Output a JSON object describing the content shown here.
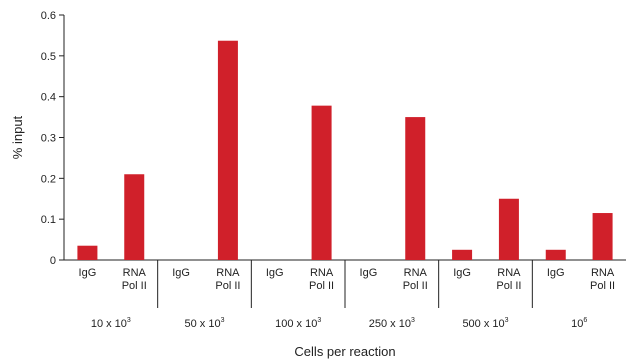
{
  "chart_data": {
    "type": "bar",
    "ylabel": "% input",
    "xlabel": "Cells per reaction",
    "ylim": [
      0,
      0.6
    ],
    "yticks": [
      "0",
      "0.1",
      "0.2",
      "0.3",
      "0.4",
      "0.5",
      "0.6"
    ],
    "ytick_values": [
      0,
      0.1,
      0.2,
      0.3,
      0.4,
      0.5,
      0.6
    ],
    "grid": false,
    "bar_color": "#d0202a",
    "groups": [
      {
        "label": "10 x 10",
        "sup": "3",
        "bars": [
          {
            "label": "IgG",
            "value": 0.035
          },
          {
            "label": "RNA\nPol II",
            "value": 0.21
          }
        ]
      },
      {
        "label": "50 x 10",
        "sup": "3",
        "bars": [
          {
            "label": "IgG",
            "value": 0.0
          },
          {
            "label": "RNA\nPol II",
            "value": 0.537
          }
        ]
      },
      {
        "label": "100 x 10",
        "sup": "3",
        "bars": [
          {
            "label": "IgG",
            "value": 0.0
          },
          {
            "label": "RNA\nPol II",
            "value": 0.378
          }
        ]
      },
      {
        "label": "250 x 10",
        "sup": "3",
        "bars": [
          {
            "label": "IgG",
            "value": 0.0
          },
          {
            "label": "RNA\nPol II",
            "value": 0.35
          }
        ]
      },
      {
        "label": "500 x 10",
        "sup": "3",
        "bars": [
          {
            "label": "IgG",
            "value": 0.025
          },
          {
            "label": "RNA\nPol II",
            "value": 0.15
          }
        ]
      },
      {
        "label": "10",
        "sup": "6",
        "bars": [
          {
            "label": "IgG",
            "value": 0.025
          },
          {
            "label": "RNA\nPol II",
            "value": 0.115
          }
        ]
      }
    ]
  }
}
